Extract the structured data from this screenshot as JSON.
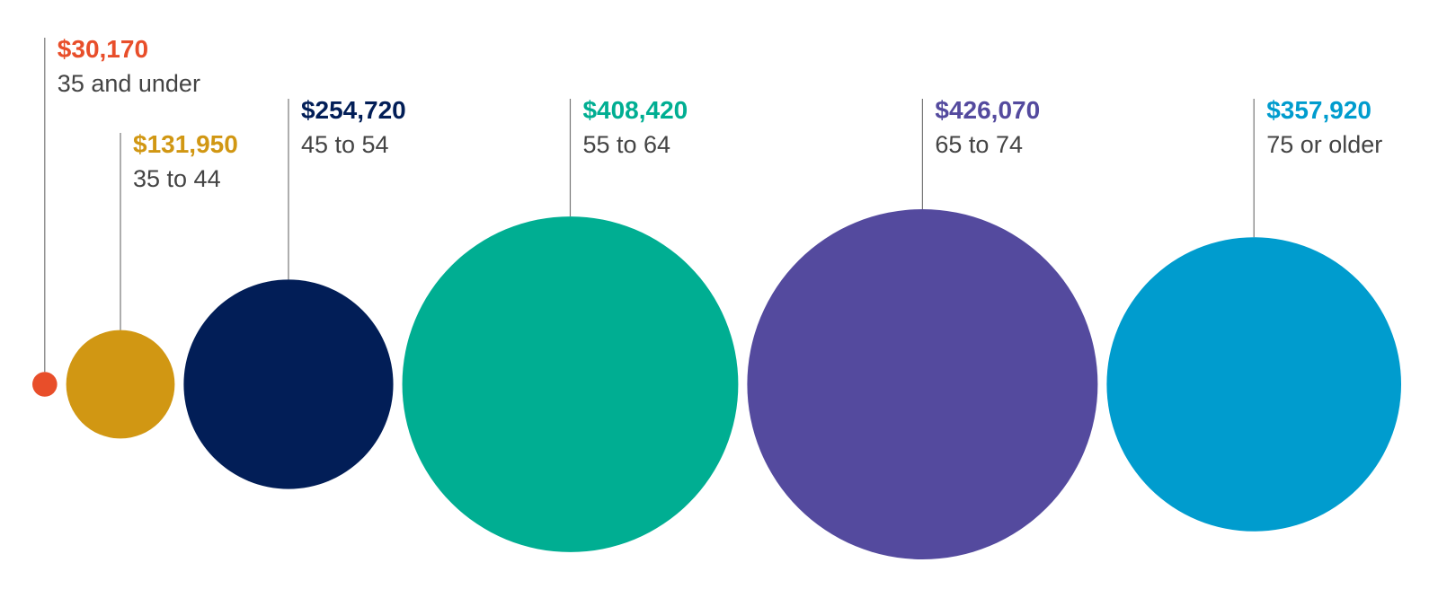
{
  "chart_data": {
    "type": "bubble",
    "categories": [
      "35 and under",
      "35 to 44",
      "45 to 54",
      "55 to 64",
      "65 to 74",
      "75 or older"
    ],
    "values": [
      30170,
      131950,
      254720,
      408420,
      426070,
      357920
    ],
    "value_labels": [
      "$30,170",
      "$131,950",
      "$254,720",
      "$408,420",
      "$426,070",
      "$357,920"
    ],
    "colors": [
      "#e84e2a",
      "#d19713",
      "#021e57",
      "#00ae92",
      "#544a9e",
      "#009cce"
    ]
  }
}
